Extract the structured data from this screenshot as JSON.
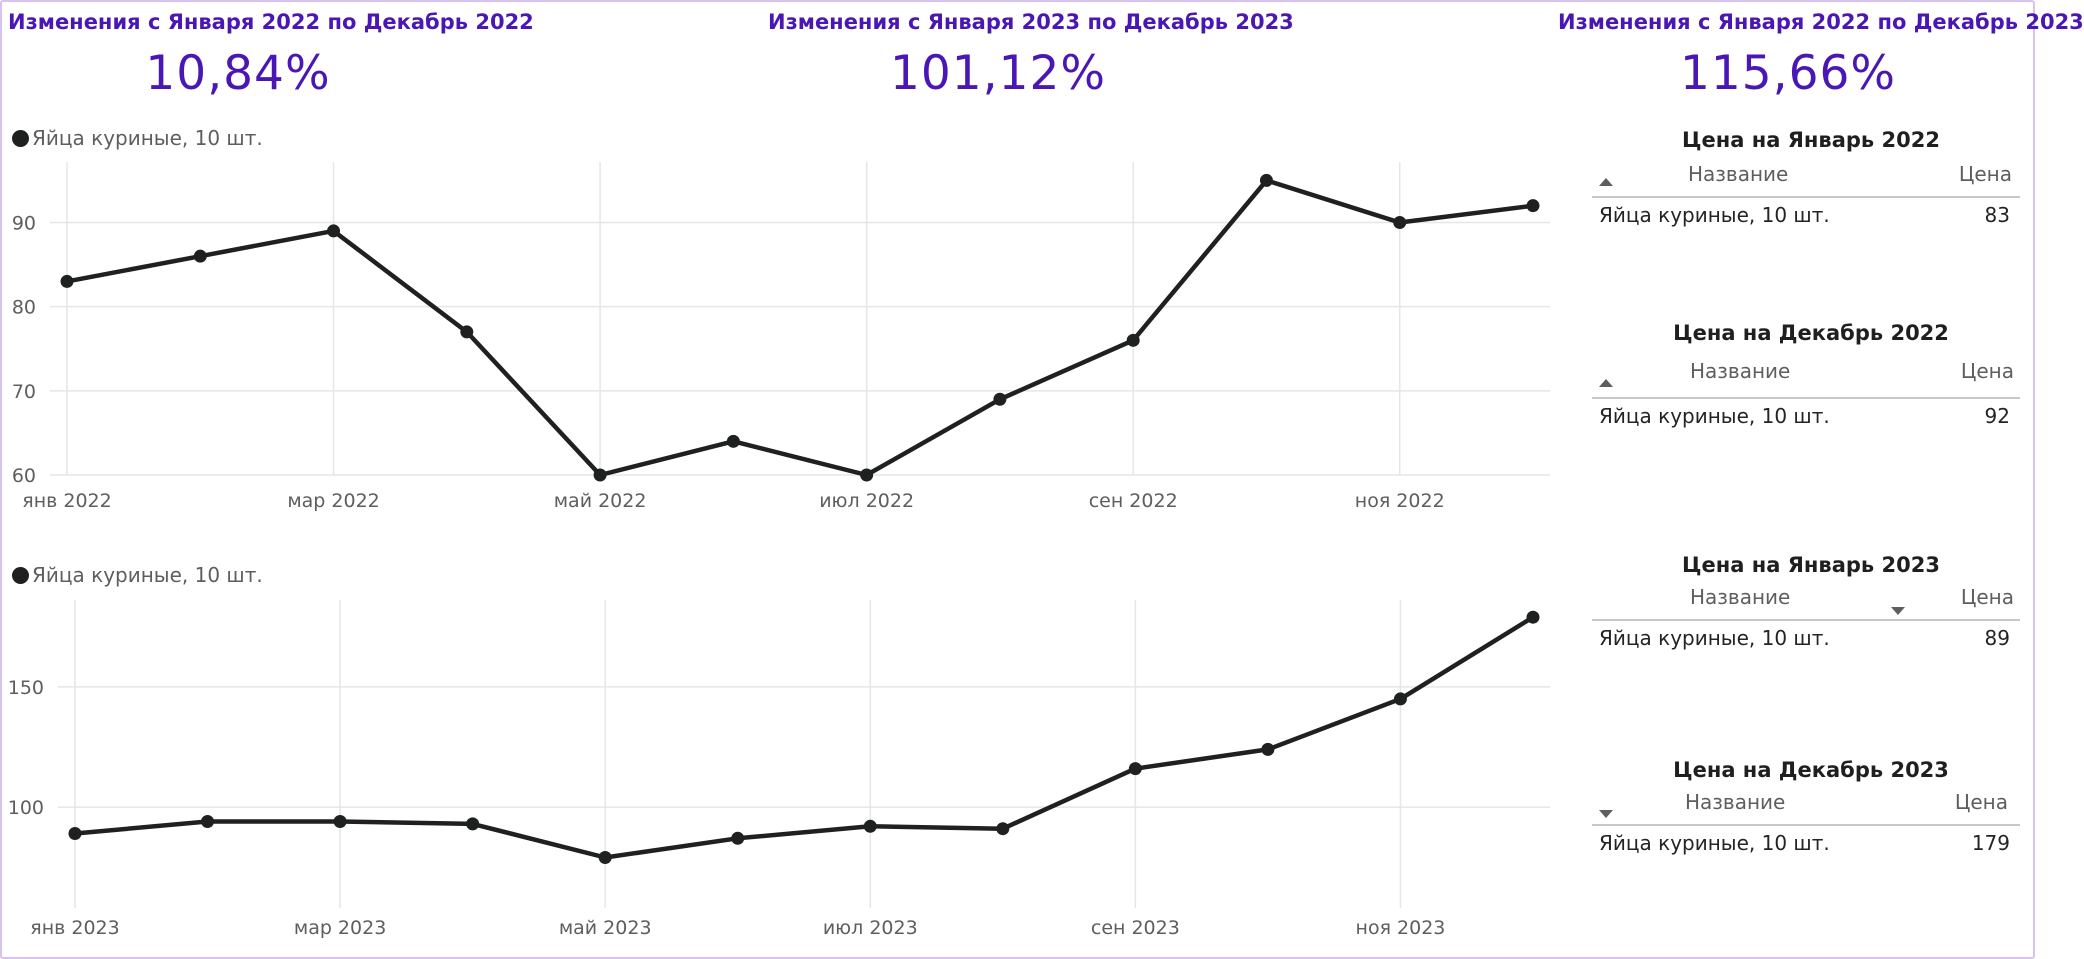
{
  "kpis": [
    {
      "title": "Изменения с Января 2022 по Декабрь 2022",
      "value": "10,84%"
    },
    {
      "title": "Изменения с Января 2023 по Декабрь 2023",
      "value": "101,12%"
    },
    {
      "title": "Изменения с Января 2022 по Декабрь 2023",
      "value": "115,66%"
    }
  ],
  "colors": {
    "accent": "#4a17b5",
    "line": "#1f2120",
    "grid": "#e6e6e6",
    "axis_text": "#605e5c"
  },
  "chart_data": [
    {
      "type": "line",
      "legend": "Яйца куриные, 10 шт.",
      "legend_position": "top-left",
      "grid": true,
      "x": [
        "янв 2022",
        "фев 2022",
        "мар 2022",
        "апр 2022",
        "май 2022",
        "июн 2022",
        "июл 2022",
        "авг 2022",
        "сен 2022",
        "окт 2022",
        "ноя 2022",
        "дек 2022"
      ],
      "x_tick_labels": [
        "янв 2022",
        "мар 2022",
        "май 2022",
        "июл 2022",
        "сен 2022",
        "ноя 2022"
      ],
      "series": [
        {
          "name": "Яйца куриные, 10 шт.",
          "values": [
            83,
            86,
            89,
            77,
            60,
            64,
            60,
            69,
            76,
            95,
            90,
            92
          ]
        }
      ],
      "y_ticks": [
        60,
        70,
        80,
        90
      ],
      "ylim": [
        60,
        96
      ]
    },
    {
      "type": "line",
      "legend": "Яйца куриные, 10 шт.",
      "legend_position": "top-left",
      "grid": true,
      "x": [
        "янв 2023",
        "фев 2023",
        "мар 2023",
        "апр 2023",
        "май 2023",
        "июн 2023",
        "июл 2023",
        "авг 2023",
        "сен 2023",
        "окт 2023",
        "ноя 2023",
        "дек 2023"
      ],
      "x_tick_labels": [
        "янв 2023",
        "мар 2023",
        "май 2023",
        "июл 2023",
        "сен 2023",
        "ноя 2023"
      ],
      "series": [
        {
          "name": "Яйца куриные, 10 шт.",
          "values": [
            89,
            94,
            94,
            93,
            79,
            87,
            92,
            91,
            116,
            124,
            145,
            179
          ]
        }
      ],
      "y_ticks": [
        100,
        150
      ],
      "ylim": [
        58,
        182
      ]
    }
  ],
  "price_tables": [
    {
      "title": "Цена на Январь 2022",
      "col_name": "Название",
      "col_price": "Цена",
      "sort": "name-asc",
      "rows": [
        {
          "name": "Яйца куриные, 10 шт.",
          "price": "83"
        }
      ]
    },
    {
      "title": "Цена на Декабрь 2022",
      "col_name": "Название",
      "col_price": "Цена",
      "sort": "name-asc",
      "rows": [
        {
          "name": "Яйца куриные, 10 шт.",
          "price": "92"
        }
      ]
    },
    {
      "title": "Цена на Январь 2023",
      "col_name": "Название",
      "col_price": "Цена",
      "sort": "price-desc",
      "rows": [
        {
          "name": "Яйца куриные, 10 шт.",
          "price": "89"
        }
      ]
    },
    {
      "title": "Цена на Декабрь 2023",
      "col_name": "Название",
      "col_price": "Цена",
      "sort": "name-desc",
      "rows": [
        {
          "name": "Яйца куриные, 10 шт.",
          "price": "179"
        }
      ]
    }
  ]
}
